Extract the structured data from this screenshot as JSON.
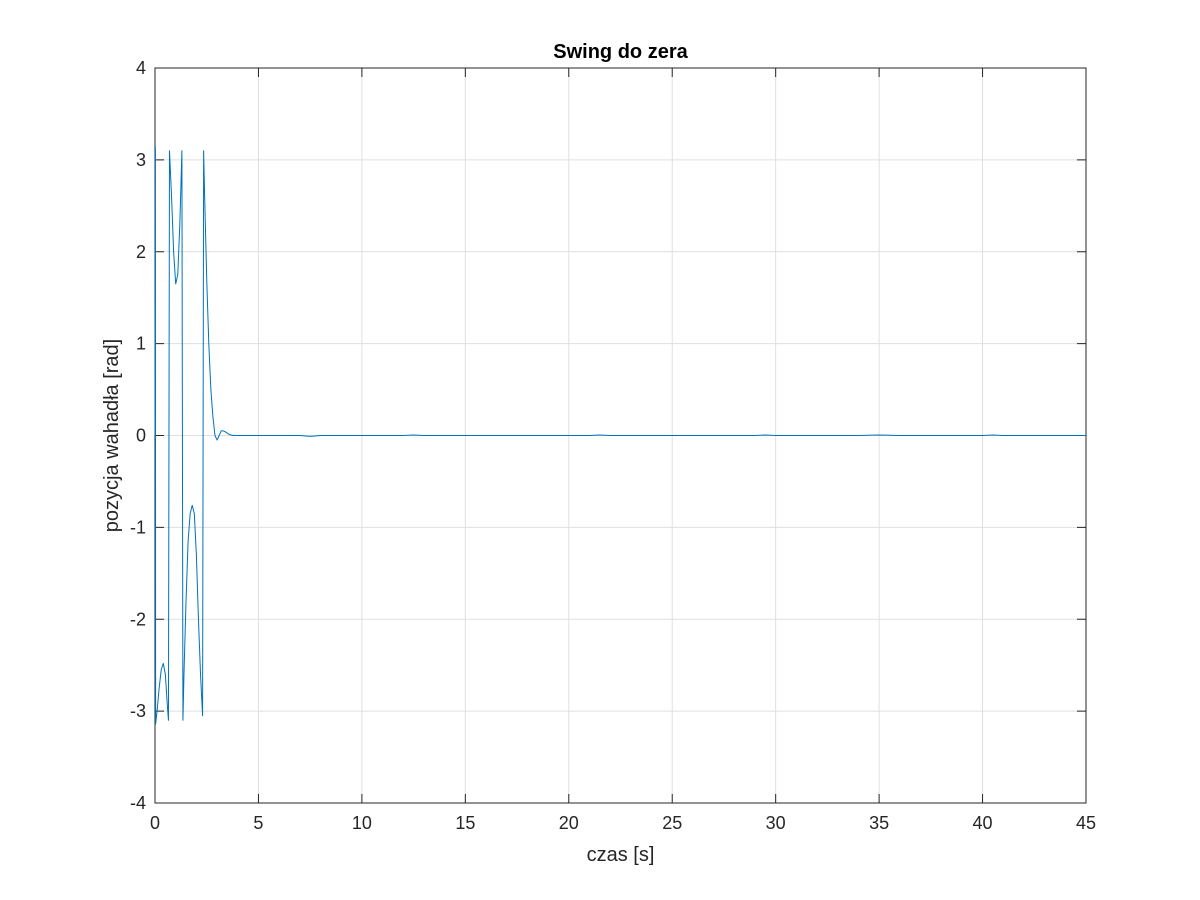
{
  "chart_data": {
    "type": "line",
    "title": "Swing do zera",
    "xlabel": "czas [s]",
    "ylabel": "pozycja wahadła [rad]",
    "xlim": [
      0,
      45
    ],
    "ylim": [
      -4,
      4
    ],
    "xticks": [
      0,
      5,
      10,
      15,
      20,
      25,
      30,
      35,
      40,
      45
    ],
    "yticks": [
      -4,
      -3,
      -2,
      -1,
      0,
      1,
      2,
      3,
      4
    ],
    "grid": true,
    "series": [
      {
        "color": "#0072BD",
        "x": [
          0,
          0.02,
          0.03,
          0.05,
          0.1,
          0.2,
          0.3,
          0.4,
          0.5,
          0.6,
          0.65,
          0.7,
          0.8,
          0.9,
          1.0,
          1.1,
          1.2,
          1.3,
          1.35,
          1.4,
          1.5,
          1.6,
          1.7,
          1.8,
          1.9,
          2.0,
          2.1,
          2.2,
          2.3,
          2.35,
          2.4,
          2.5,
          2.6,
          2.7,
          2.8,
          2.9,
          3.0,
          3.1,
          3.2,
          3.3,
          3.4,
          3.6,
          3.8,
          4.0,
          4.5,
          5,
          6,
          7,
          7.5,
          8,
          9,
          10,
          11,
          12,
          12.5,
          13,
          14,
          15,
          16,
          17,
          18,
          19,
          20,
          21,
          21.5,
          22,
          23,
          24,
          25,
          26,
          27,
          28,
          29,
          29.5,
          30,
          31,
          32,
          33,
          34,
          35,
          36,
          37,
          38,
          39,
          40,
          40.5,
          41,
          42,
          43,
          44,
          45
        ],
        "y": [
          0,
          3.14,
          -3.14,
          -3.1,
          -3.0,
          -2.75,
          -2.55,
          -2.48,
          -2.6,
          -2.95,
          -3.1,
          3.1,
          2.6,
          2.0,
          1.65,
          1.75,
          2.3,
          3.1,
          -3.1,
          -2.6,
          -1.8,
          -1.15,
          -0.85,
          -0.76,
          -0.85,
          -1.3,
          -2.0,
          -2.6,
          -3.05,
          3.1,
          2.6,
          1.7,
          1.0,
          0.5,
          0.2,
          0.0,
          -0.05,
          0.0,
          0.05,
          0.05,
          0.04,
          0.01,
          0.0,
          0.0,
          0.0,
          0.0,
          0.0,
          0.0,
          -0.01,
          0.0,
          0.0,
          0.0,
          0.0,
          0.0,
          0.005,
          0.0,
          0.0,
          0.0,
          0.0,
          0.0,
          0.0,
          0.0,
          0.0,
          0.0,
          0.005,
          0.0,
          0.0,
          0.0,
          0.0,
          0.0,
          0.0,
          0.0,
          0.0,
          0.005,
          0.0,
          0.0,
          0.0,
          0.0,
          0.0,
          0.005,
          0.0,
          0.0,
          0.0,
          0.0,
          0.0,
          0.005,
          0.0,
          0.0,
          0.0,
          0.0,
          0.0
        ]
      }
    ]
  }
}
